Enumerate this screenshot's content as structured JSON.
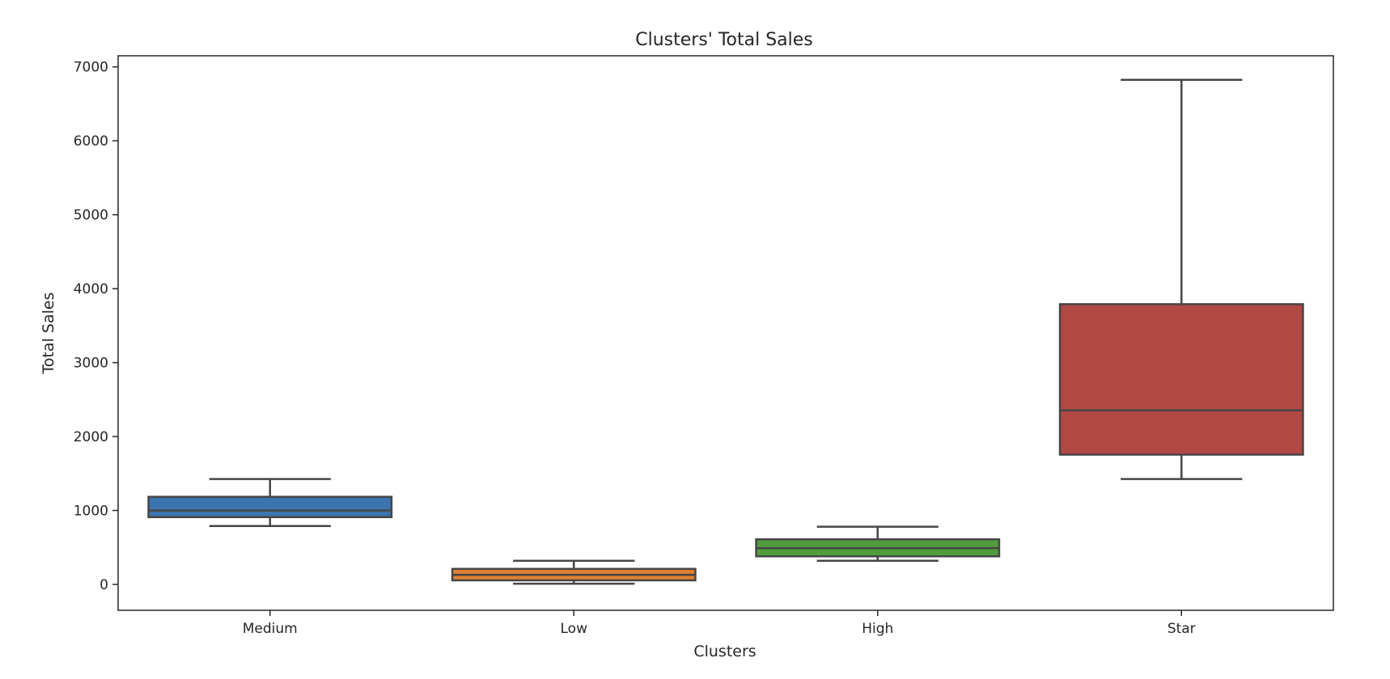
{
  "chart_data": {
    "type": "box",
    "title": "Clusters' Total Sales",
    "xlabel": "Clusters",
    "ylabel": "Total Sales",
    "ylim": [
      -350,
      7150
    ],
    "yticks": [
      0,
      1000,
      2000,
      3000,
      4000,
      5000,
      6000,
      7000
    ],
    "grid": false,
    "categories": [
      "Medium",
      "Low",
      "High",
      "Star"
    ],
    "boxes": [
      {
        "category": "Medium",
        "whisker_low": 790,
        "q1": 910,
        "median": 1000,
        "q3": 1185,
        "whisker_high": 1425,
        "color": "#3a75af"
      },
      {
        "category": "Low",
        "whisker_low": 10,
        "q1": 55,
        "median": 130,
        "q3": 210,
        "whisker_high": 320,
        "color": "#e08132"
      },
      {
        "category": "High",
        "whisker_low": 320,
        "q1": 380,
        "median": 490,
        "q3": 610,
        "whisker_high": 780,
        "color": "#519d3e"
      },
      {
        "category": "Star",
        "whisker_low": 1425,
        "q1": 1755,
        "median": 2355,
        "q3": 3790,
        "whisker_high": 6825,
        "color": "#b04844"
      }
    ]
  }
}
